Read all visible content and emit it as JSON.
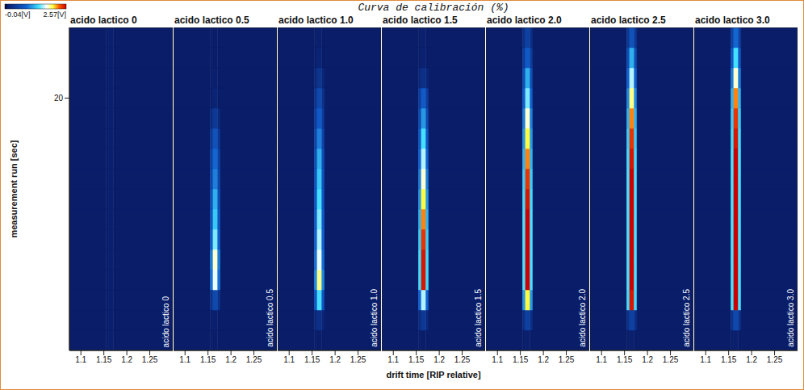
{
  "chart_data": {
    "type": "heatmap",
    "title": "Curva de calibración (%)",
    "x_label": "drift time [RIP relative]",
    "y_label": "measurement run [sec]",
    "xlim": [
      1.075,
      1.3
    ],
    "xticks": [
      1.1,
      1.15,
      1.2,
      1.25
    ],
    "ylim": [
      0,
      25.6
    ],
    "yticks": [
      20
    ],
    "colorbar": {
      "range": [
        -0.04,
        2.57
      ],
      "ticks": [
        {
          "value": -0.04,
          "label": "-0.04[V]"
        },
        {
          "value": 2.57,
          "label": "2.57[V]"
        }
      ]
    },
    "x_bins": [
      1.075,
      1.155,
      1.161,
      1.171,
      1.177,
      1.3
    ],
    "y_bins": [
      0,
      1.6,
      3.2,
      4.8,
      6.4,
      8,
      9.6,
      11.2,
      12.8,
      14.4,
      16,
      17.6,
      19.2,
      20.8,
      22.4,
      24,
      25.6
    ],
    "panels": [
      {
        "title": "acido lactico 0",
        "values": [
          [
            0.08,
            0.08,
            0.1,
            0.08,
            0.08
          ],
          [
            0.08,
            0.08,
            0.1,
            0.08,
            0.08
          ],
          [
            0.08,
            0.08,
            0.1,
            0.08,
            0.08
          ],
          [
            0.08,
            0.08,
            0.1,
            0.08,
            0.08
          ],
          [
            0.08,
            0.08,
            0.1,
            0.08,
            0.08
          ],
          [
            0.08,
            0.08,
            0.1,
            0.08,
            0.08
          ],
          [
            0.08,
            0.08,
            0.1,
            0.08,
            0.08
          ],
          [
            0.08,
            0.08,
            0.1,
            0.08,
            0.08
          ],
          [
            0.08,
            0.08,
            0.1,
            0.08,
            0.08
          ],
          [
            0.08,
            0.08,
            0.1,
            0.08,
            0.08
          ],
          [
            0.08,
            0.08,
            0.1,
            0.08,
            0.08
          ],
          [
            0.08,
            0.08,
            0.1,
            0.08,
            0.08
          ],
          [
            0.08,
            0.08,
            0.1,
            0.08,
            0.08
          ],
          [
            0.08,
            0.08,
            0.1,
            0.08,
            0.08
          ],
          [
            0.08,
            0.08,
            0.1,
            0.08,
            0.08
          ],
          [
            0.08,
            0.08,
            0.1,
            0.08,
            0.08
          ]
        ]
      },
      {
        "title": "acido lactico 0.5",
        "values": [
          [
            0.08,
            0.08,
            0.08,
            0.08,
            0.08
          ],
          [
            0.08,
            0.08,
            0.1,
            0.08,
            0.08
          ],
          [
            0.08,
            0.33,
            0.6,
            0.33,
            0.08
          ],
          [
            0.08,
            0.94,
            1.7,
            0.94,
            0.08
          ],
          [
            0.08,
            0.99,
            1.8,
            0.99,
            0.08
          ],
          [
            0.08,
            0.83,
            1.5,
            0.83,
            0.08
          ],
          [
            0.08,
            0.72,
            1.3,
            0.72,
            0.08
          ],
          [
            0.08,
            0.66,
            1.2,
            0.66,
            0.08
          ],
          [
            0.08,
            0.55,
            1.0,
            0.55,
            0.08
          ],
          [
            0.08,
            0.5,
            0.9,
            0.5,
            0.08
          ],
          [
            0.08,
            0.39,
            0.7,
            0.39,
            0.08
          ],
          [
            0.08,
            0.22,
            0.4,
            0.22,
            0.08
          ],
          [
            0.08,
            0.08,
            0.15,
            0.08,
            0.08
          ],
          [
            0.08,
            0.08,
            0.1,
            0.08,
            0.08
          ],
          [
            0.08,
            0.08,
            0.08,
            0.08,
            0.08
          ],
          [
            0.08,
            0.08,
            0.08,
            0.08,
            0.08
          ]
        ]
      },
      {
        "title": "acido lactico 1.0",
        "values": [
          [
            0.08,
            0.08,
            0.08,
            0.08,
            0.08
          ],
          [
            0.08,
            0.17,
            0.3,
            0.17,
            0.08
          ],
          [
            0.08,
            0.77,
            1.4,
            0.77,
            0.08
          ],
          [
            0.08,
            1.05,
            1.9,
            1.05,
            0.08
          ],
          [
            0.08,
            0.94,
            1.7,
            0.94,
            0.08
          ],
          [
            0.08,
            0.88,
            1.6,
            0.88,
            0.08
          ],
          [
            0.08,
            0.83,
            1.5,
            0.83,
            0.08
          ],
          [
            0.08,
            0.77,
            1.4,
            0.77,
            0.08
          ],
          [
            0.08,
            0.72,
            1.3,
            0.72,
            0.08
          ],
          [
            0.08,
            0.66,
            1.2,
            0.66,
            0.08
          ],
          [
            0.08,
            0.55,
            1.0,
            0.55,
            0.08
          ],
          [
            0.08,
            0.44,
            0.8,
            0.44,
            0.08
          ],
          [
            0.08,
            0.33,
            0.6,
            0.33,
            0.08
          ],
          [
            0.08,
            0.19,
            0.35,
            0.19,
            0.08
          ],
          [
            0.08,
            0.08,
            0.15,
            0.08,
            0.08
          ],
          [
            0.08,
            0.08,
            0.1,
            0.08,
            0.08
          ]
        ]
      },
      {
        "title": "acido lactico 1.5",
        "values": [
          [
            0.08,
            0.08,
            0.08,
            0.08,
            0.08
          ],
          [
            0.08,
            0.22,
            0.4,
            0.22,
            0.08
          ],
          [
            0.08,
            0.88,
            1.6,
            0.88,
            0.08
          ],
          [
            0.08,
            1.38,
            2.5,
            1.38,
            0.08
          ],
          [
            0.08,
            1.38,
            2.5,
            1.38,
            0.08
          ],
          [
            0.08,
            1.32,
            2.4,
            1.32,
            0.08
          ],
          [
            0.08,
            1.21,
            2.2,
            1.21,
            0.08
          ],
          [
            0.08,
            1.1,
            2.0,
            1.1,
            0.08
          ],
          [
            0.08,
            0.99,
            1.8,
            0.99,
            0.08
          ],
          [
            0.08,
            0.88,
            1.6,
            0.88,
            0.08
          ],
          [
            0.08,
            0.77,
            1.4,
            0.77,
            0.08
          ],
          [
            0.08,
            0.61,
            1.1,
            0.61,
            0.08
          ],
          [
            0.08,
            0.44,
            0.8,
            0.44,
            0.08
          ],
          [
            0.08,
            0.17,
            0.3,
            0.17,
            0.08
          ],
          [
            0.08,
            0.08,
            0.12,
            0.08,
            0.08
          ],
          [
            0.08,
            0.08,
            0.1,
            0.08,
            0.08
          ]
        ]
      },
      {
        "title": "acido lactico 2.0",
        "values": [
          [
            0.08,
            0.08,
            0.1,
            0.08,
            0.08
          ],
          [
            0.08,
            0.28,
            0.5,
            0.28,
            0.08
          ],
          [
            0.08,
            1.1,
            2.0,
            1.1,
            0.08
          ],
          [
            0.08,
            1.41,
            2.57,
            1.41,
            0.08
          ],
          [
            0.08,
            1.41,
            2.57,
            1.41,
            0.08
          ],
          [
            0.08,
            1.41,
            2.57,
            1.41,
            0.08
          ],
          [
            0.08,
            1.41,
            2.57,
            1.41,
            0.08
          ],
          [
            0.08,
            1.38,
            2.5,
            1.38,
            0.08
          ],
          [
            0.08,
            1.32,
            2.4,
            1.32,
            0.08
          ],
          [
            0.08,
            1.21,
            2.2,
            1.21,
            0.08
          ],
          [
            0.08,
            1.1,
            2.0,
            1.1,
            0.08
          ],
          [
            0.08,
            0.99,
            1.8,
            0.99,
            0.08
          ],
          [
            0.08,
            0.83,
            1.5,
            0.83,
            0.08
          ],
          [
            0.08,
            0.66,
            1.2,
            0.66,
            0.08
          ],
          [
            0.08,
            0.44,
            0.8,
            0.44,
            0.08
          ],
          [
            0.08,
            0.28,
            0.5,
            0.28,
            0.08
          ]
        ]
      },
      {
        "title": "acido lactico 2.5",
        "values": [
          [
            0.08,
            0.08,
            0.1,
            0.08,
            0.08
          ],
          [
            0.08,
            0.28,
            0.5,
            0.28,
            0.08
          ],
          [
            0.08,
            1.38,
            2.5,
            1.38,
            0.08
          ],
          [
            0.08,
            1.41,
            2.57,
            1.41,
            0.08
          ],
          [
            0.08,
            1.41,
            2.57,
            1.41,
            0.08
          ],
          [
            0.08,
            1.41,
            2.57,
            1.41,
            0.08
          ],
          [
            0.08,
            1.41,
            2.57,
            1.41,
            0.08
          ],
          [
            0.08,
            1.41,
            2.57,
            1.41,
            0.08
          ],
          [
            0.08,
            1.41,
            2.57,
            1.41,
            0.08
          ],
          [
            0.08,
            1.38,
            2.5,
            1.38,
            0.08
          ],
          [
            0.08,
            1.32,
            2.4,
            1.32,
            0.08
          ],
          [
            0.08,
            1.21,
            2.2,
            1.21,
            0.08
          ],
          [
            0.08,
            1.05,
            1.9,
            1.05,
            0.08
          ],
          [
            0.08,
            0.88,
            1.6,
            0.88,
            0.08
          ],
          [
            0.08,
            0.66,
            1.2,
            0.66,
            0.08
          ],
          [
            0.08,
            0.39,
            0.7,
            0.39,
            0.08
          ]
        ]
      },
      {
        "title": "acido lactico 3.0",
        "values": [
          [
            0.08,
            0.08,
            0.1,
            0.08,
            0.08
          ],
          [
            0.08,
            0.33,
            0.6,
            0.33,
            0.08
          ],
          [
            0.08,
            1.41,
            2.57,
            1.41,
            0.08
          ],
          [
            0.08,
            1.41,
            2.57,
            1.41,
            0.08
          ],
          [
            0.08,
            1.41,
            2.57,
            1.41,
            0.08
          ],
          [
            0.08,
            1.41,
            2.57,
            1.41,
            0.08
          ],
          [
            0.08,
            1.41,
            2.57,
            1.41,
            0.08
          ],
          [
            0.08,
            1.41,
            2.57,
            1.41,
            0.08
          ],
          [
            0.08,
            1.41,
            2.57,
            1.41,
            0.08
          ],
          [
            0.08,
            1.41,
            2.57,
            1.41,
            0.08
          ],
          [
            0.08,
            1.38,
            2.5,
            1.38,
            0.08
          ],
          [
            0.08,
            1.32,
            2.4,
            1.32,
            0.08
          ],
          [
            0.08,
            1.21,
            2.2,
            1.21,
            0.08
          ],
          [
            0.08,
            0.99,
            1.8,
            0.99,
            0.08
          ],
          [
            0.08,
            0.77,
            1.4,
            0.77,
            0.08
          ],
          [
            0.08,
            0.5,
            0.9,
            0.5,
            0.08
          ]
        ]
      }
    ]
  }
}
